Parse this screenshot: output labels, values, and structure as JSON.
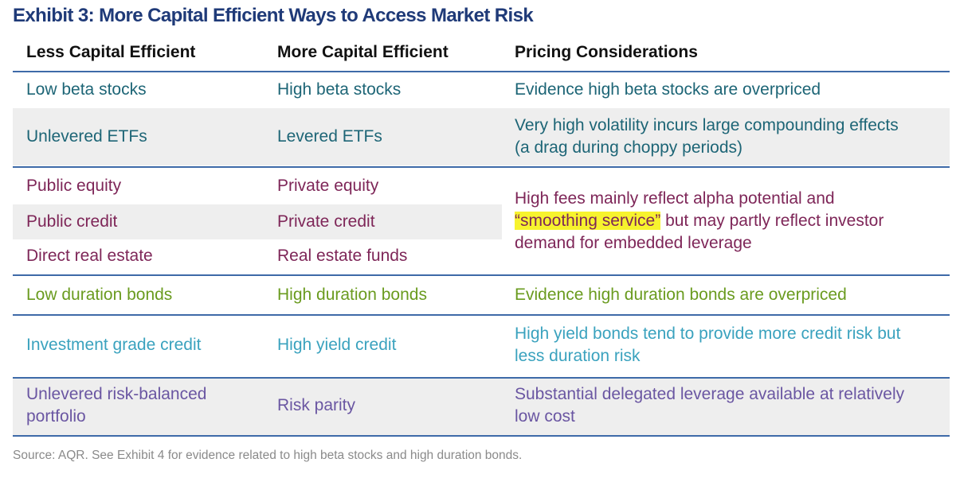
{
  "title": "Exhibit 3: More Capital Efficient Ways to Access Market Risk",
  "headers": [
    "Less Capital Efficient",
    "More Capital Efficient",
    "Pricing Considerations"
  ],
  "rows": [
    {
      "less": "Low beta stocks",
      "more": "High beta stocks",
      "pricing": "Evidence high beta stocks are overpriced"
    },
    {
      "less": "Unlevered ETFs",
      "more": "Levered ETFs",
      "pricing_line1": "Very high volatility incurs large compounding effects",
      "pricing_line2": "(a drag during choppy periods)"
    },
    {
      "sub": [
        {
          "less": "Public equity",
          "more": "Private equity"
        },
        {
          "less": "Public credit",
          "more": "Private credit"
        },
        {
          "less": "Direct real estate",
          "more": "Real estate funds"
        }
      ],
      "pricing_line1": "High fees mainly reflect alpha potential and",
      "pricing_highlight": "“smoothing service”",
      "pricing_line2_rest": " but may partly reflect investor",
      "pricing_line3": "demand for embedded leverage"
    },
    {
      "less": "Low duration bonds",
      "more": "High duration bonds",
      "pricing": "Evidence high duration bonds are overpriced"
    },
    {
      "less": "Investment grade credit",
      "more": "High yield credit",
      "pricing_line1": "High yield bonds tend to provide more credit risk but",
      "pricing_line2": "less duration risk"
    },
    {
      "less_line1": "Unlevered risk-balanced",
      "less_line2": "portfolio",
      "more": "Risk parity",
      "pricing_line1": "Substantial delegated leverage available at relatively",
      "pricing_line2": "low cost"
    }
  ],
  "source": "Source: AQR. See Exhibit 4 for evidence related to high beta stocks and high duration bonds.",
  "colors": {
    "title": "#1f3a78",
    "rule": "#3e6aa8",
    "teal": "#1d6576",
    "purple": "#7e2658",
    "green": "#6a9b1f",
    "cyan": "#3aa2be",
    "violet": "#6a56a2",
    "highlight": "#f7f32e"
  }
}
